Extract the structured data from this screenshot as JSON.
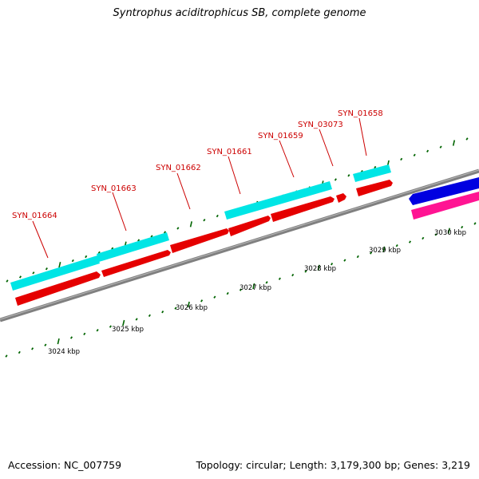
{
  "title": "Syntrophus aciditrophicus SB, complete genome",
  "footer": {
    "accession": "Accession: NC_007759",
    "summary": "Topology: circular; Length: 3,179,300 bp; Genes: 3,219"
  },
  "colors": {
    "backbone": "#808080",
    "cds_strand": "#00e5e5",
    "gene_forward": "#e50000",
    "gene_reverse": "#0000e0",
    "rna": "#ff1493",
    "tick": "#006400",
    "locus_label": "#cc0000"
  },
  "genes": [
    {
      "locus": "SYN_01664"
    },
    {
      "locus": "SYN_01663"
    },
    {
      "locus": "SYN_01662"
    },
    {
      "locus": "SYN_01661"
    },
    {
      "locus": "SYN_01659"
    },
    {
      "locus": "SYN_03073"
    },
    {
      "locus": "SYN_01658"
    }
  ],
  "scale": {
    "unit": "kbp",
    "labels": [
      "3024 kbp",
      "3025 kbp",
      "3026 kbp",
      "3027 kbp",
      "3028 kbp",
      "3029 kbp",
      "3030 kbp"
    ]
  }
}
